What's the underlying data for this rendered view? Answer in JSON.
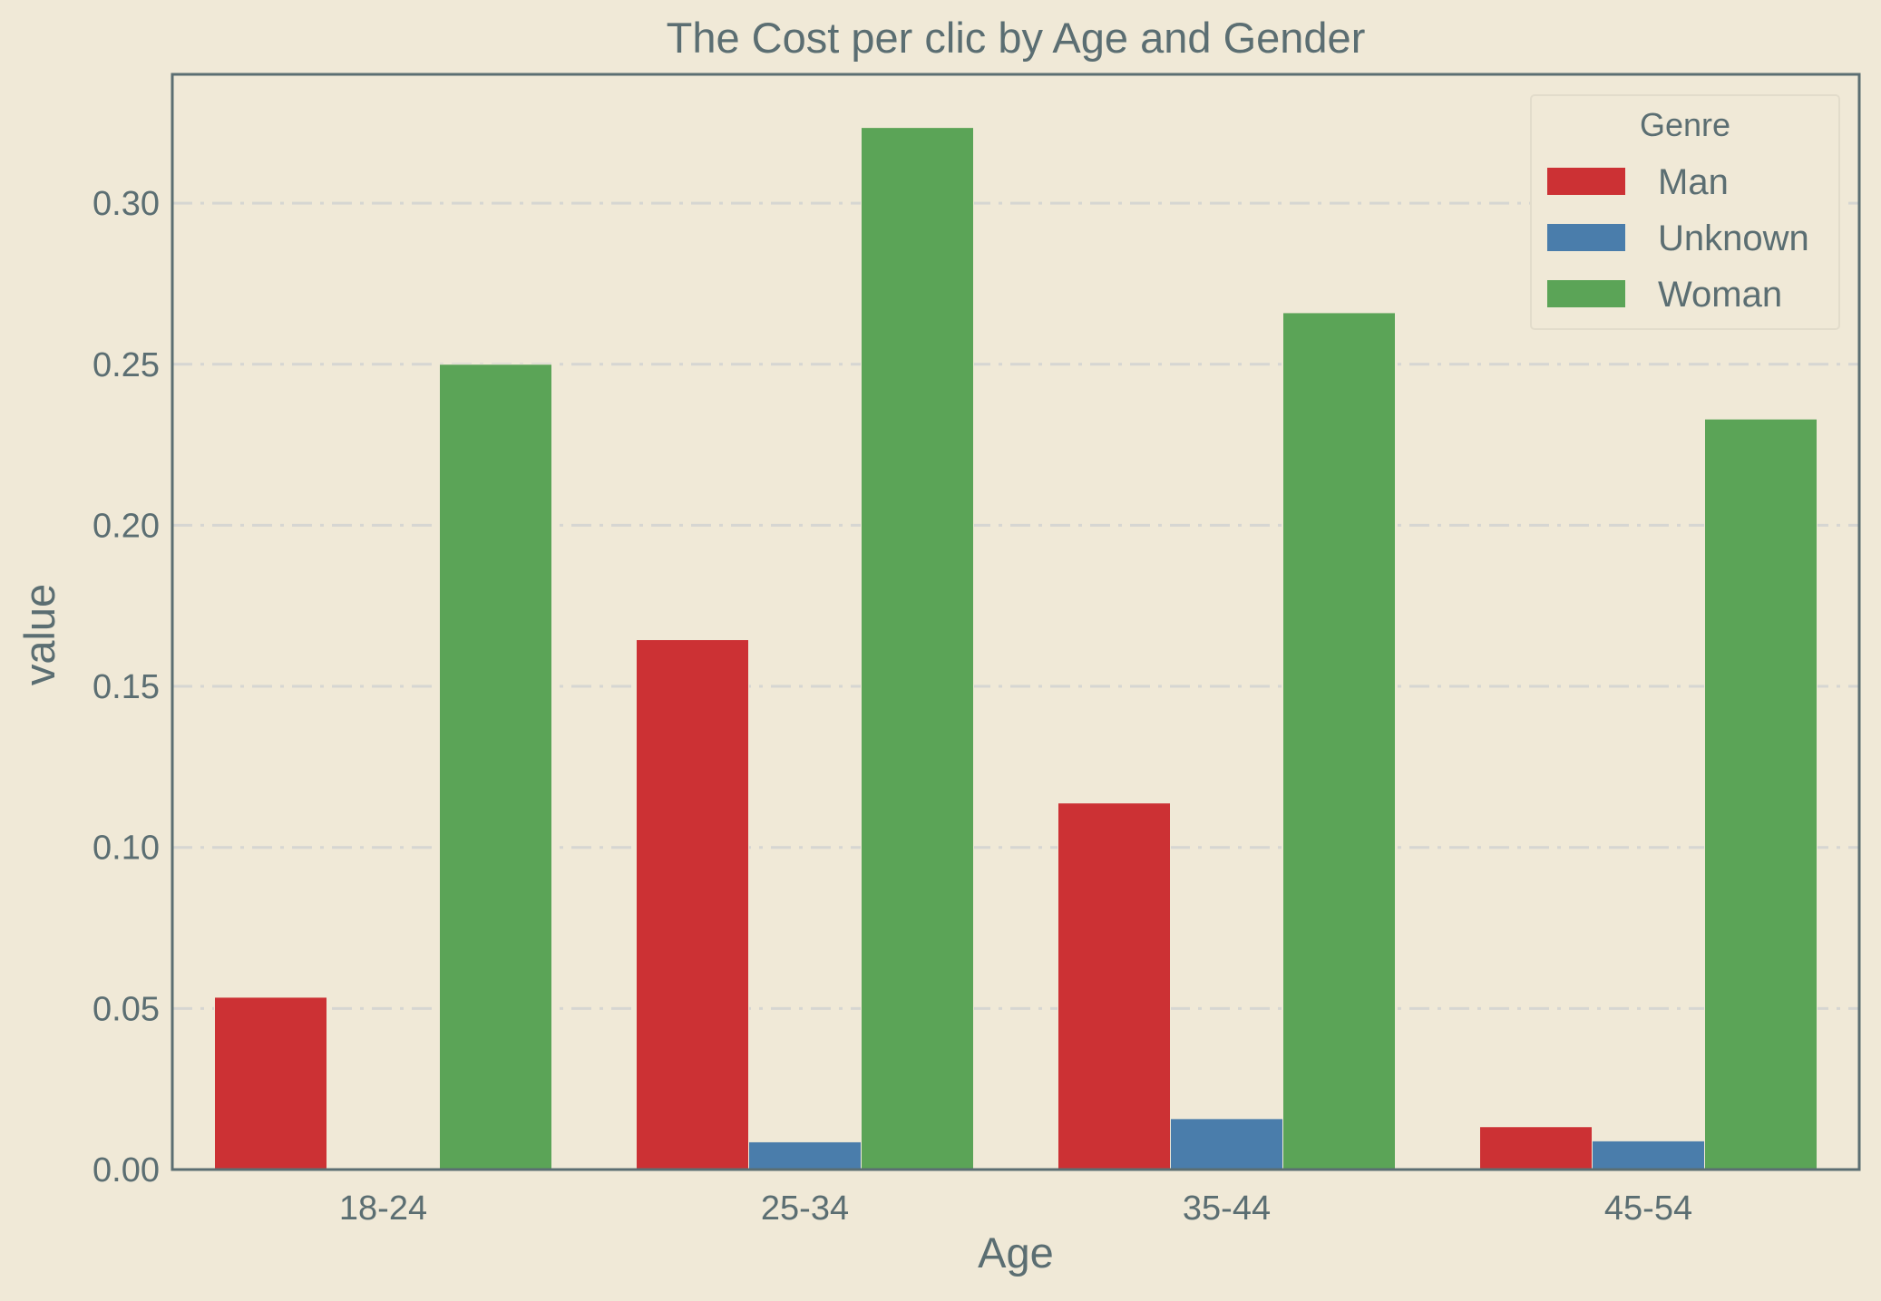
{
  "chart_data": {
    "type": "bar",
    "title": "The Cost per clic by Age and Gender",
    "xlabel": "Age",
    "ylabel": "value",
    "categories": [
      "18-24",
      "25-34",
      "35-44",
      "45-54"
    ],
    "ylim": [
      0,
      0.34
    ],
    "yticks": [
      "0.00",
      "0.05",
      "0.10",
      "0.15",
      "0.20",
      "0.25",
      "0.30"
    ],
    "grid": "horizontal dash-dot",
    "legend": {
      "title": "Genre",
      "placement": "top-right"
    },
    "series": [
      {
        "name": "Man",
        "color": "#cc3134",
        "values": [
          0.0535,
          0.1645,
          0.1138,
          0.0133
        ]
      },
      {
        "name": "Unknown",
        "color": "#4a7dab",
        "values": [
          0.0,
          0.0086,
          0.0158,
          0.0089
        ]
      },
      {
        "name": "Woman",
        "color": "#5ba457",
        "values": [
          0.25,
          0.3235,
          0.266,
          0.233
        ]
      }
    ]
  }
}
